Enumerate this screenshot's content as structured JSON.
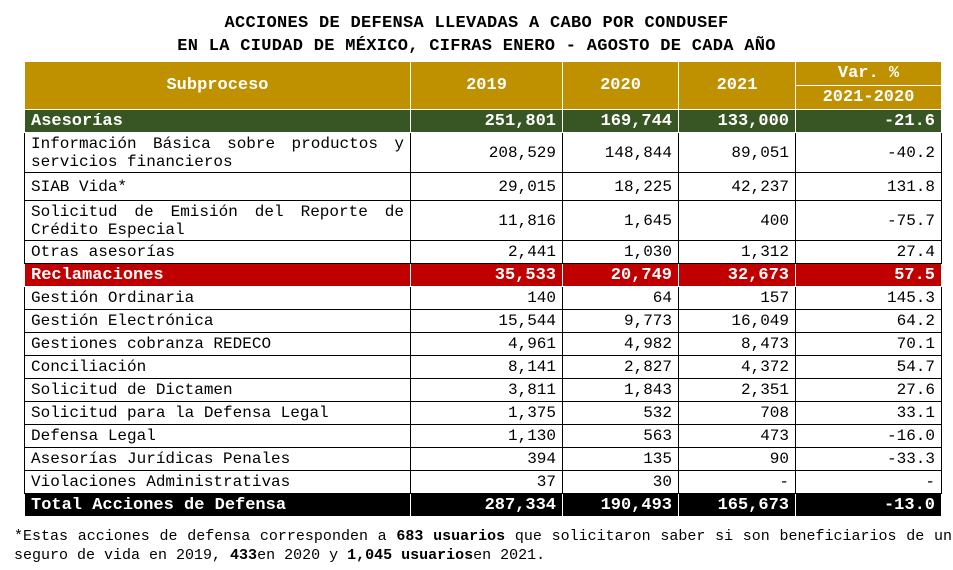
{
  "title": [
    "ACCIONES DE DEFENSA LLEVADAS A CABO POR CONDUSEF",
    "EN LA CIUDAD DE MÉXICO, CIFRAS ENERO - AGOSTO DE CADA AÑO"
  ],
  "headers": {
    "subproceso": "Subproceso",
    "y2019": "2019",
    "y2020": "2020",
    "y2021": "2021",
    "var": "Var. %",
    "var_period": "2021-2020"
  },
  "rows": [
    {
      "label": "Asesorías",
      "v": [
        "251,801",
        "169,744",
        "133,000",
        "-21.6"
      ]
    },
    {
      "label": "Información Básica sobre productos y servicios financieros",
      "v": [
        "208,529",
        "148,844",
        "89,051",
        "-40.2"
      ]
    },
    {
      "label": "SIAB Vida*",
      "v": [
        "29,015",
        "18,225",
        "42,237",
        "131.8"
      ]
    },
    {
      "label": "Solicitud de Emisión del Reporte de Crédito Especial",
      "v": [
        "11,816",
        "1,645",
        "400",
        "-75.7"
      ]
    },
    {
      "label": "Otras asesorías",
      "v": [
        "2,441",
        "1,030",
        "1,312",
        "27.4"
      ]
    },
    {
      "label": "Reclamaciones",
      "v": [
        "35,533",
        "20,749",
        "32,673",
        "57.5"
      ]
    },
    {
      "label": "Gestión Ordinaria",
      "v": [
        "140",
        "64",
        "157",
        "145.3"
      ]
    },
    {
      "label": "Gestión Electrónica",
      "v": [
        "15,544",
        "9,773",
        "16,049",
        "64.2"
      ]
    },
    {
      "label": "Gestiones cobranza  REDECO",
      "v": [
        "4,961",
        "4,982",
        "8,473",
        "70.1"
      ]
    },
    {
      "label": "Conciliación",
      "v": [
        "8,141",
        "2,827",
        "4,372",
        "54.7"
      ]
    },
    {
      "label": "Solicitud de Dictamen",
      "v": [
        "3,811",
        "1,843",
        "2,351",
        "27.6"
      ]
    },
    {
      "label": "Solicitud para la Defensa Legal",
      "v": [
        "1,375",
        "532",
        "708",
        "33.1"
      ]
    },
    {
      "label": "Defensa Legal",
      "v": [
        "1,130",
        "563",
        "473",
        "-16.0"
      ]
    },
    {
      "label": "Asesorías Jurídicas Penales",
      "v": [
        "394",
        "135",
        "90",
        "-33.3"
      ]
    },
    {
      "label": "Violaciones Administrativas",
      "v": [
        "37",
        "30",
        "-",
        "-"
      ]
    },
    {
      "label": "Total Acciones de Defensa",
      "v": [
        "287,334",
        "190,493",
        "165,673",
        "-13.0"
      ]
    }
  ],
  "footnote": {
    "p1": "*Estas acciones de defensa corresponden a ",
    "b1": "683 usuarios",
    "p2": " que solicitaron saber si son beneficiarios de un seguro de vida en 2019, ",
    "b2": "433",
    "p3": "en 2020 y ",
    "b3": "1,045 usuarios",
    "p4": "en 2021."
  },
  "colors": {
    "header": "#BF9000",
    "asesorias": "#375623",
    "reclamaciones": "#C00000",
    "total": "#000000"
  }
}
